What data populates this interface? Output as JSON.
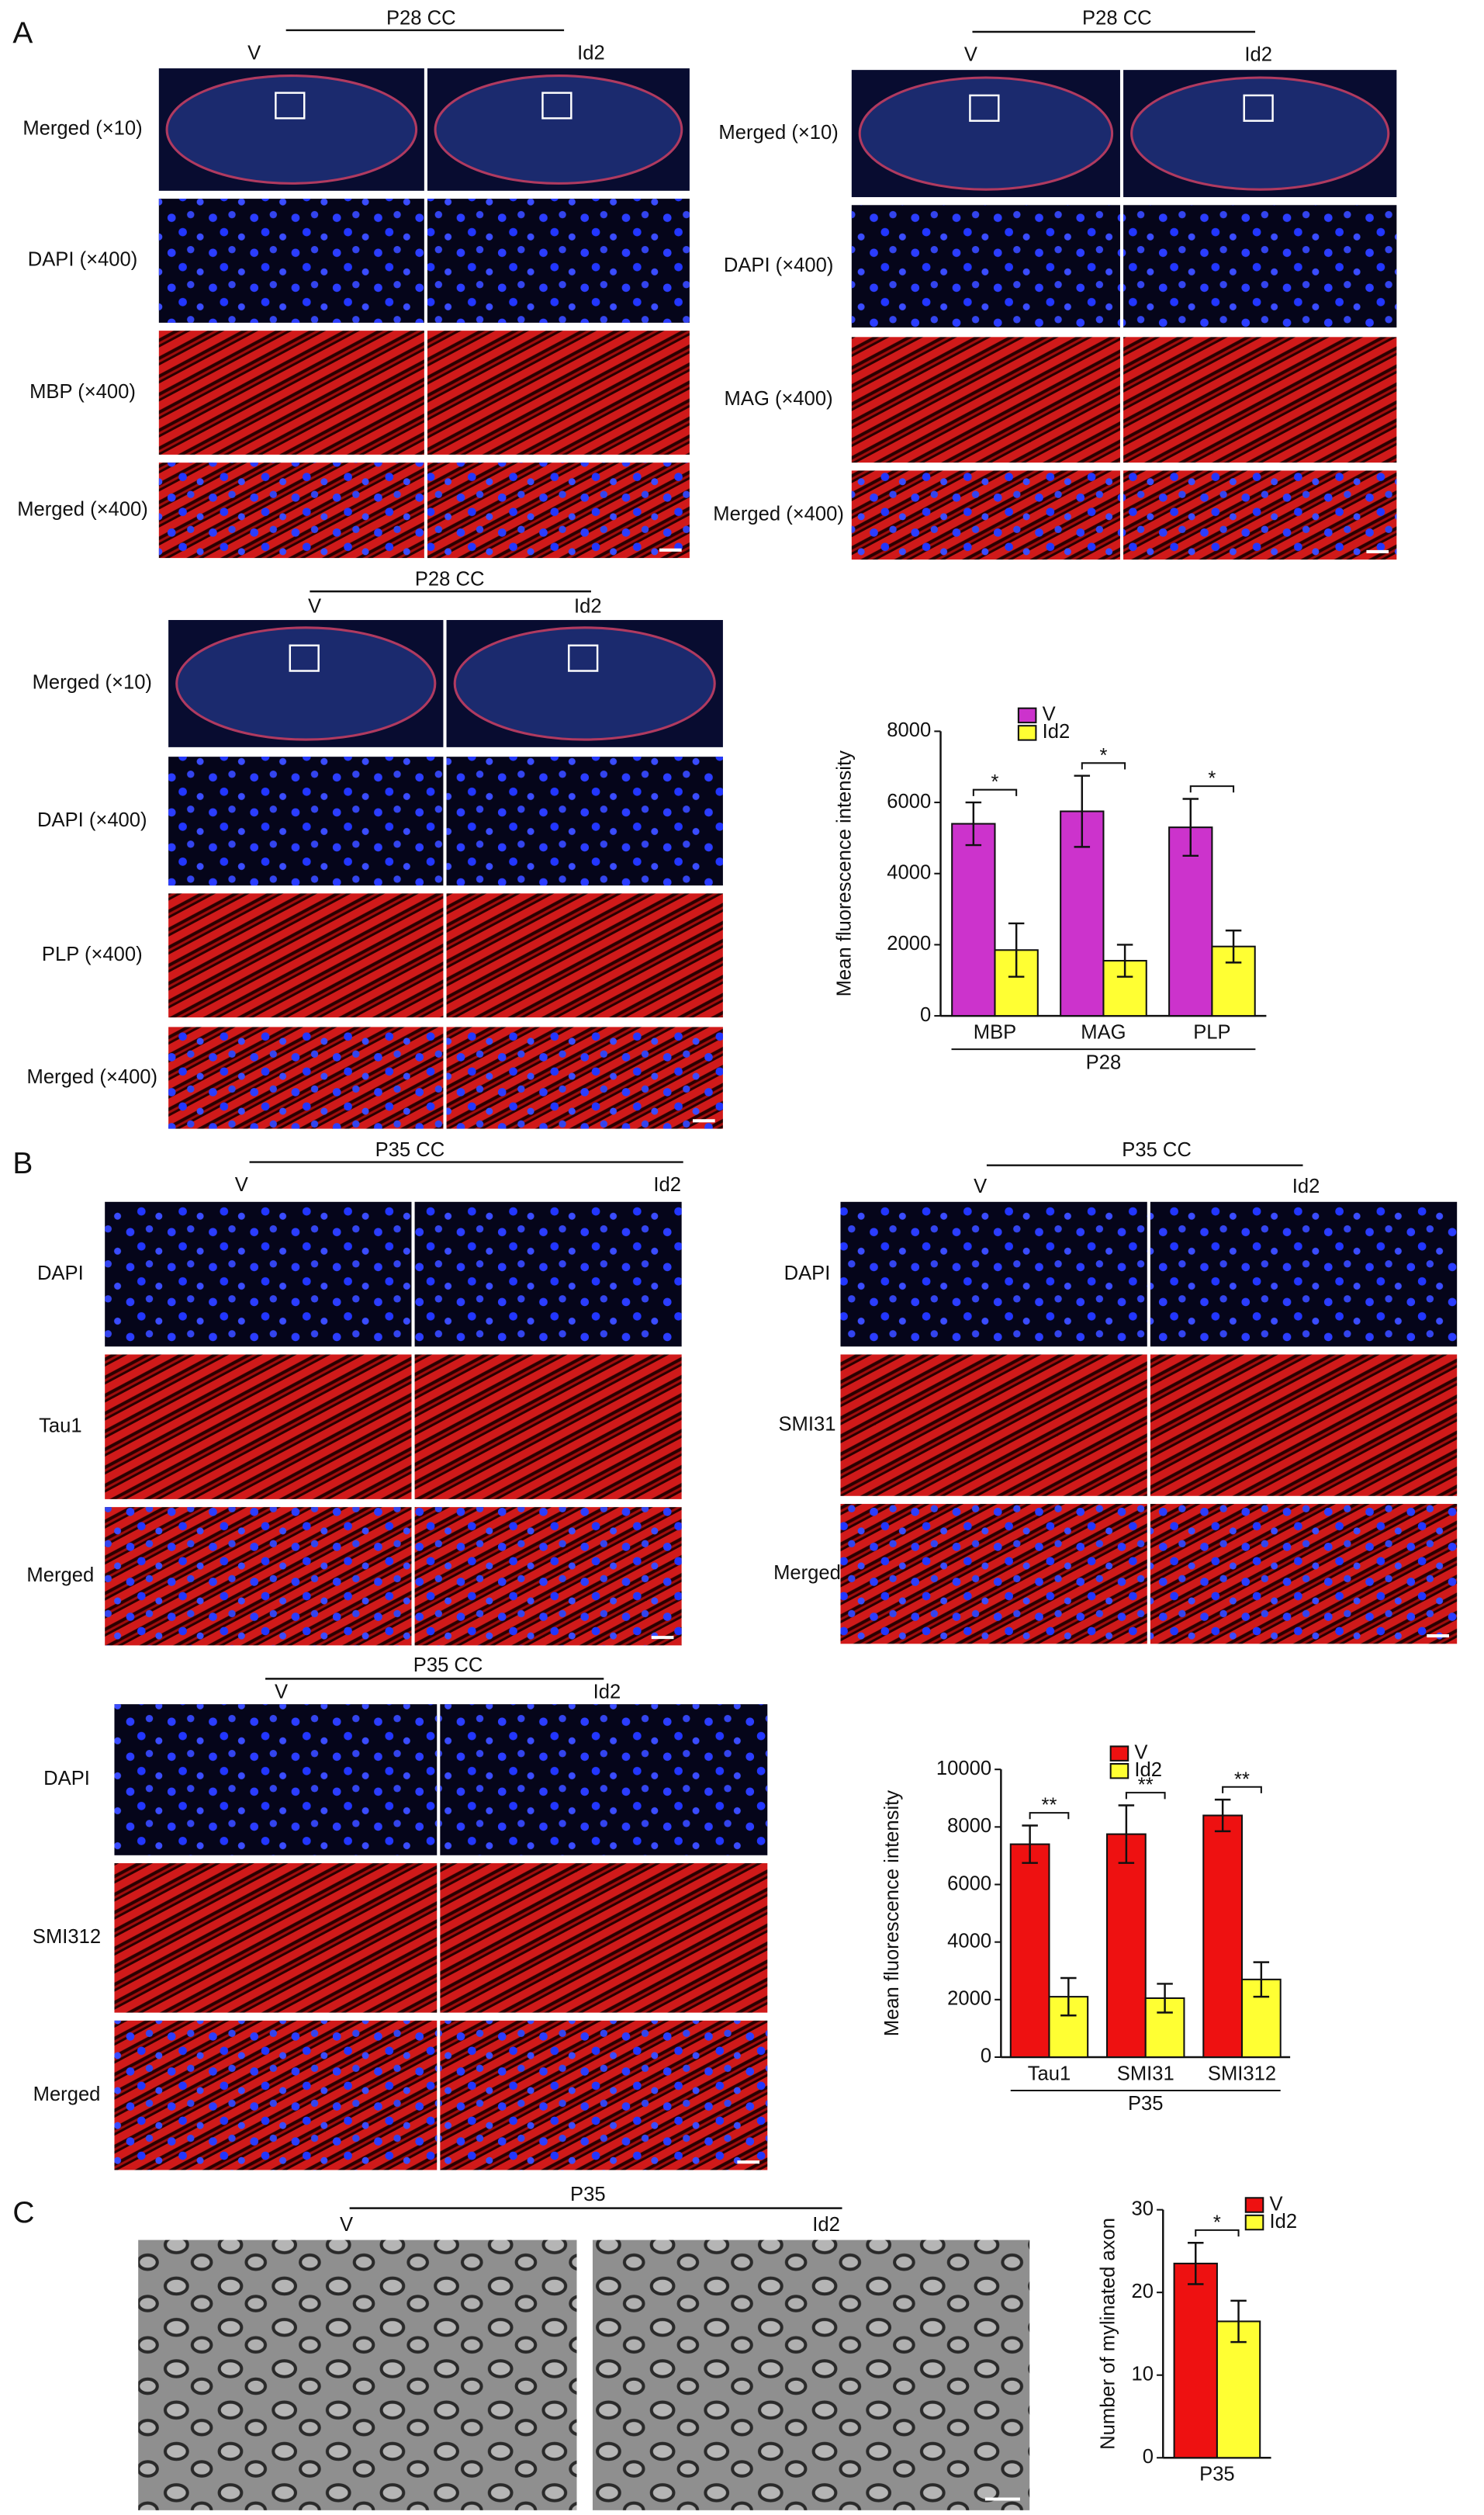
{
  "panel_labels": [
    "A",
    "B",
    "C"
  ],
  "image_groups": [
    {
      "header": "P28 CC",
      "columns": [
        "V",
        "Id2"
      ],
      "rows": [
        "Merged (×10)",
        "DAPI (×400)",
        "MBP (×400)",
        "Merged (×400)"
      ]
    },
    {
      "header": "P28 CC",
      "columns": [
        "V",
        "Id2"
      ],
      "rows": [
        "Merged (×10)",
        "DAPI (×400)",
        "MAG (×400)",
        "Merged (×400)"
      ]
    },
    {
      "header": "P28 CC",
      "columns": [
        "V",
        "Id2"
      ],
      "rows": [
        "Merged (×10)",
        "DAPI (×400)",
        "PLP (×400)",
        "Merged (×400)"
      ]
    },
    {
      "header": "P35 CC",
      "columns": [
        "V",
        "Id2"
      ],
      "rows": [
        "DAPI",
        "Tau1",
        "Merged"
      ]
    },
    {
      "header": "P35 CC",
      "columns": [
        "V",
        "Id2"
      ],
      "rows": [
        "DAPI",
        "SMI31",
        "Merged"
      ]
    },
    {
      "header": "P35 CC",
      "columns": [
        "V",
        "Id2"
      ],
      "rows": [
        "DAPI",
        "SMI312",
        "Merged"
      ]
    },
    {
      "header": "P35",
      "columns": [
        "V",
        "Id2"
      ],
      "rows": []
    }
  ],
  "chart_data": [
    {
      "type": "bar",
      "ylabel": "Mean fluorescence intensity",
      "categories": [
        "MBP",
        "MAG",
        "PLP"
      ],
      "group_label": "P28",
      "ylim": [
        0,
        8000
      ],
      "yticks": [
        0,
        2000,
        4000,
        6000,
        8000
      ],
      "series": [
        {
          "name": "V",
          "color": "#cc33cc",
          "values": [
            5400,
            5750,
            5300
          ],
          "errors": [
            600,
            1000,
            800
          ]
        },
        {
          "name": "Id2",
          "color": "#ffff33",
          "values": [
            1850,
            1550,
            1950
          ],
          "errors": [
            750,
            450,
            450
          ]
        }
      ],
      "annotations": [
        "*",
        "*",
        "*"
      ]
    },
    {
      "type": "bar",
      "ylabel": "Mean fluorescence intensity",
      "categories": [
        "Tau1",
        "SMI31",
        "SMI312"
      ],
      "group_label": "P35",
      "ylim": [
        0,
        10000
      ],
      "yticks": [
        0,
        2000,
        4000,
        6000,
        8000,
        10000
      ],
      "series": [
        {
          "name": "V",
          "color": "#ee1111",
          "values": [
            7400,
            7750,
            8400
          ],
          "errors": [
            650,
            1000,
            550
          ]
        },
        {
          "name": "Id2",
          "color": "#ffff33",
          "values": [
            2100,
            2050,
            2700
          ],
          "errors": [
            650,
            500,
            600
          ]
        }
      ],
      "annotations": [
        "**",
        "**",
        "**"
      ]
    },
    {
      "type": "bar",
      "ylabel": "Number of mylinated axon",
      "categories": [
        "P35"
      ],
      "ylim": [
        0,
        30
      ],
      "yticks": [
        0,
        10,
        20,
        30
      ],
      "series": [
        {
          "name": "V",
          "color": "#ee1111",
          "values": [
            23.5
          ],
          "errors": [
            2.5
          ]
        },
        {
          "name": "Id2",
          "color": "#ffff33",
          "values": [
            16.5
          ],
          "errors": [
            2.5
          ]
        }
      ],
      "annotations": [
        "*"
      ]
    }
  ]
}
